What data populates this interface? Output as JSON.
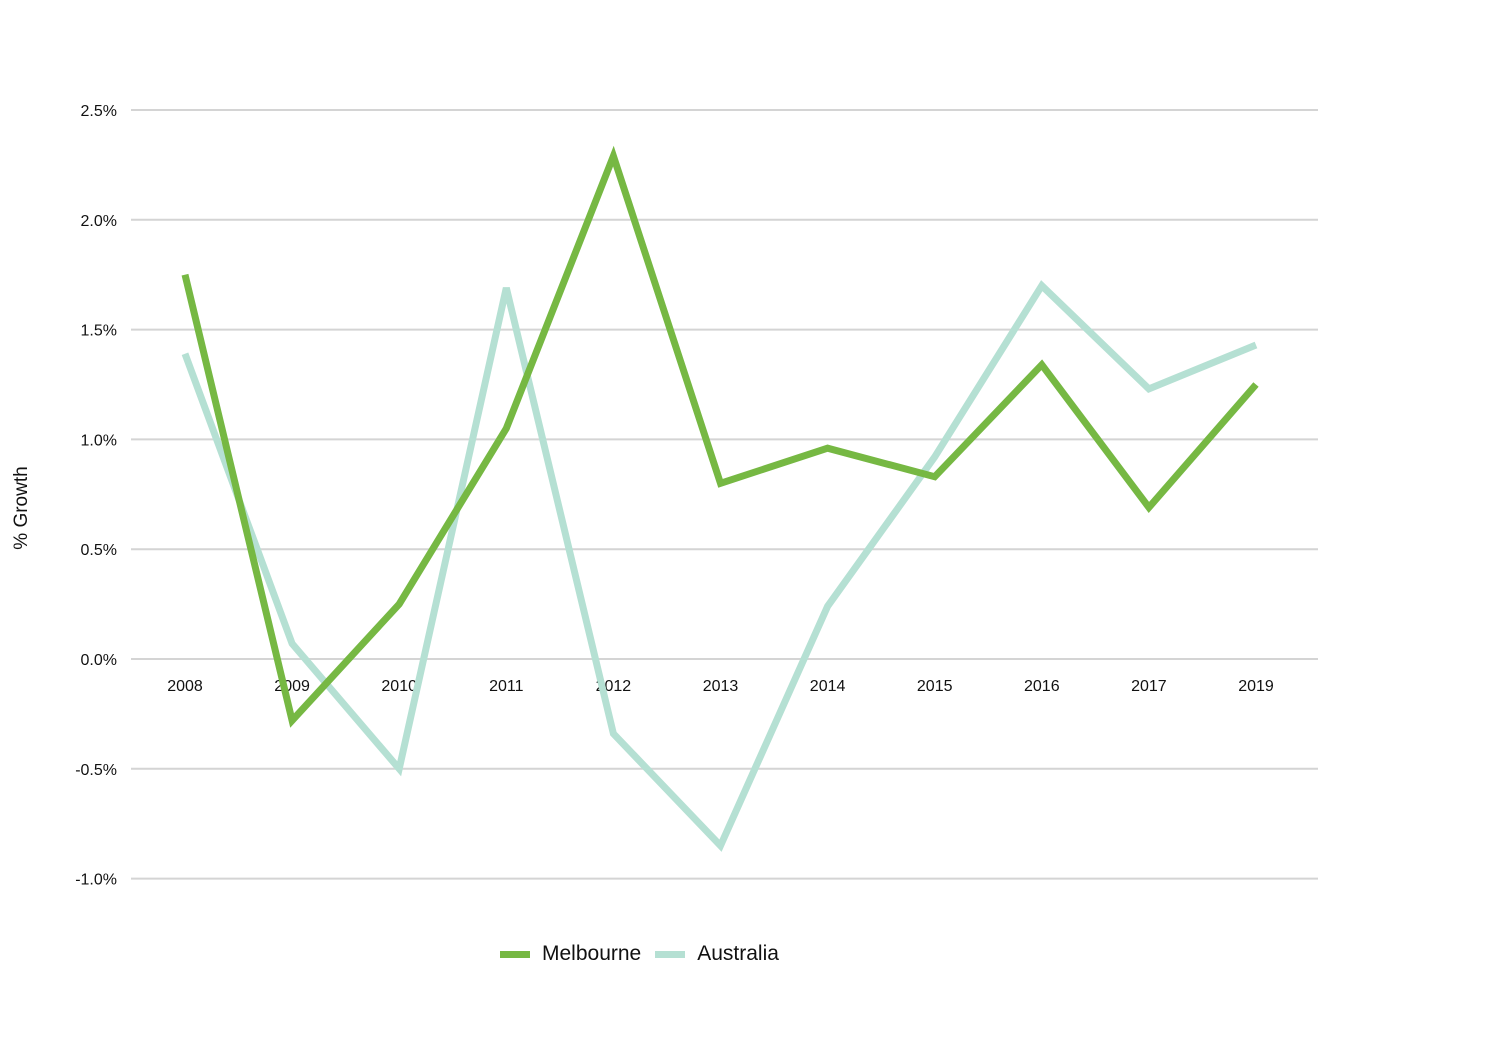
{
  "chart_data": {
    "type": "line",
    "title": "",
    "xlabel": "",
    "ylabel": "% Growth",
    "categories": [
      "2008",
      "2009",
      "2010",
      "2011",
      "2012",
      "2013",
      "2014",
      "2015",
      "2016",
      "2017",
      "2019"
    ],
    "series": [
      {
        "name": "Melbourne",
        "color": "#76b843",
        "values": [
          1.75,
          -0.28,
          0.25,
          1.05,
          2.29,
          0.8,
          0.96,
          0.83,
          1.34,
          0.69,
          1.25
        ]
      },
      {
        "name": "Australia",
        "color": "#b5e0d3",
        "values": [
          1.39,
          0.07,
          -0.5,
          1.69,
          -0.34,
          -0.85,
          0.24,
          0.92,
          1.7,
          1.23,
          1.43
        ]
      }
    ],
    "yticks": [
      "2.5%",
      "2.0%",
      "1.5%",
      "1.0%",
      "0.5%",
      "0.0%",
      "-0.5%",
      "-1.0%"
    ],
    "ylim": [
      -1.0,
      2.5
    ],
    "grid": true,
    "legend_position": "bottom"
  }
}
